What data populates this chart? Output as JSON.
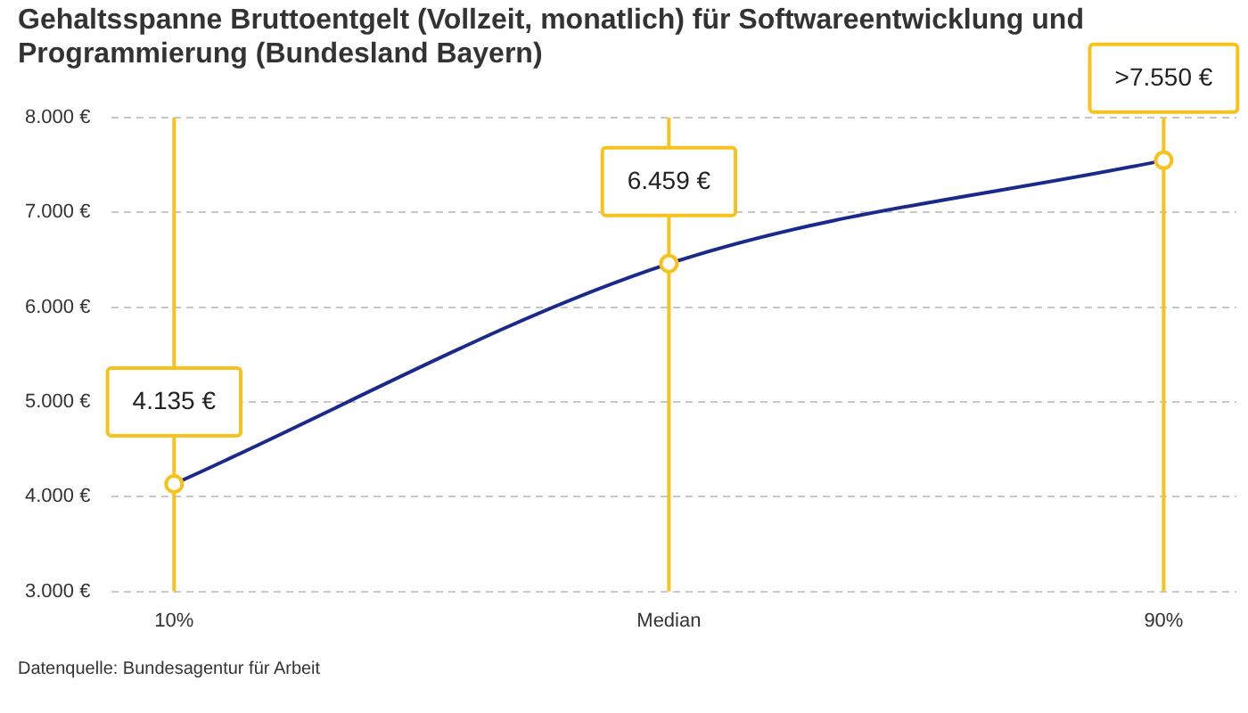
{
  "chart_data": {
    "type": "line",
    "title": "Gehaltsspanne Bruttoentgelt (Vollzeit, monatlich) für Softwareentwicklung und Programmierung (Bundesland Bayern)",
    "categories": [
      "10%",
      "Median",
      "90%"
    ],
    "series": [
      {
        "color": "#1a2a8c",
        "values": [
          4135,
          6459,
          7550
        ],
        "value_labels": [
          "4.135 €",
          "6.459 €",
          ">7.550 €"
        ]
      }
    ],
    "ylim": [
      3000,
      8000
    ],
    "yticks": [
      {
        "value": 3000,
        "label": "3.000 €"
      },
      {
        "value": 4000,
        "label": "4.000 €"
      },
      {
        "value": 5000,
        "label": "5.000 €"
      },
      {
        "value": 6000,
        "label": "6.000 €"
      },
      {
        "value": 7000,
        "label": "7.000 €"
      },
      {
        "value": 8000,
        "label": "8.000 €"
      }
    ],
    "grid": "y",
    "legend": false,
    "marker": "circle",
    "line_style": "solid",
    "ref_lines": [
      {
        "axis": "x",
        "value": "10%",
        "color": "#f7c21b"
      },
      {
        "axis": "x",
        "value": "Median",
        "color": "#f7c21b"
      },
      {
        "axis": "x",
        "value": "90%",
        "color": "#f7c21b"
      }
    ],
    "annotations": [
      "Datenquelle: Bundesagentur für Arbeit"
    ]
  }
}
